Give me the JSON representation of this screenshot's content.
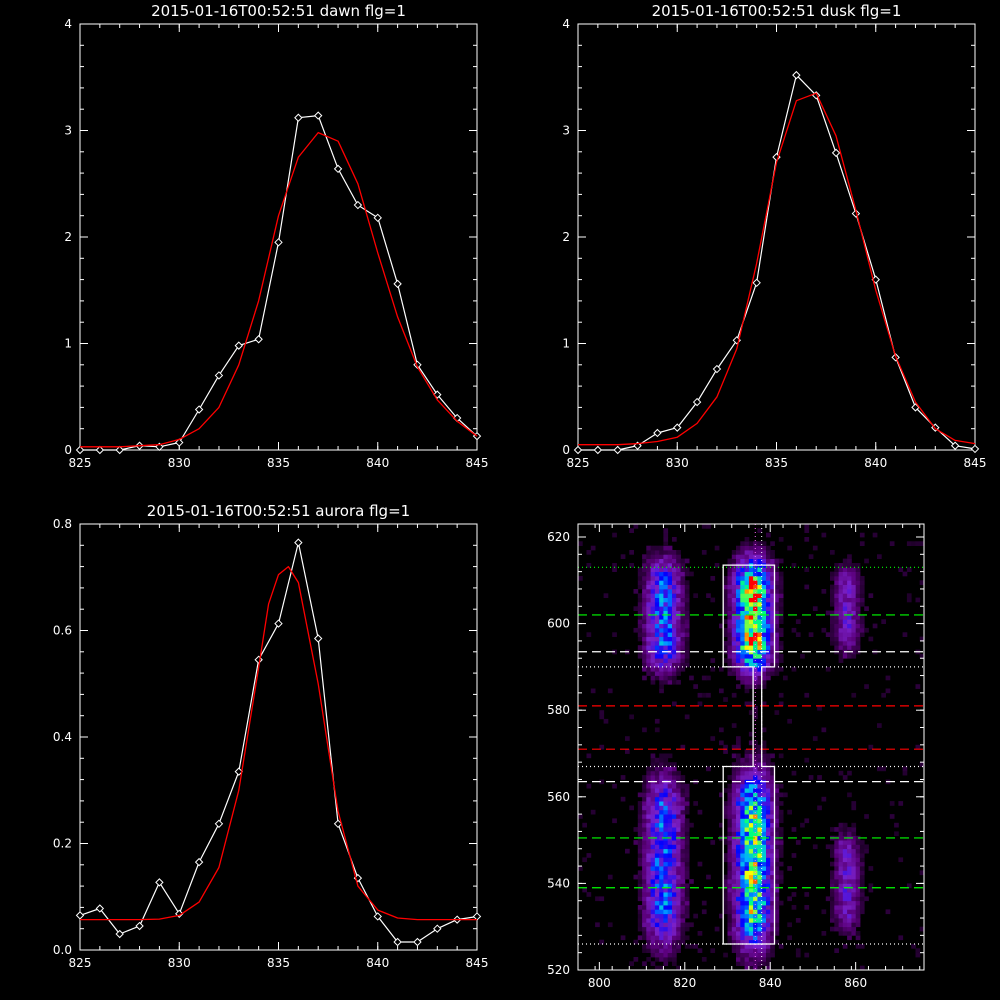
{
  "chart_data": [
    {
      "type": "line",
      "title": "2015-01-16T00:52:51 dawn flg=1",
      "xlim": [
        825,
        845
      ],
      "ylim": [
        0,
        4
      ],
      "xticks": [
        "825",
        "830",
        "835",
        "840",
        "845"
      ],
      "yticks": [
        "0",
        "1",
        "2",
        "3",
        "4"
      ],
      "series": [
        {
          "color": "#ffffff",
          "marker": "diamond",
          "x": [
            825,
            826,
            827,
            828,
            829,
            830,
            831,
            832,
            833,
            834,
            835,
            836,
            837,
            838,
            839,
            840,
            841,
            842,
            843,
            844,
            845
          ],
          "y": [
            -0.02,
            -0.02,
            -0.02,
            0.04,
            0.03,
            0.07,
            0.38,
            0.7,
            0.98,
            1.04,
            1.95,
            3.12,
            3.14,
            2.64,
            2.3,
            2.18,
            1.56,
            0.8,
            0.52,
            0.3,
            0.13
          ]
        },
        {
          "color": "#ff0000",
          "style": "fit",
          "x": [
            825,
            826,
            827,
            828,
            829,
            830,
            831,
            832,
            833,
            834,
            835,
            836,
            837,
            838,
            839,
            840,
            841,
            842,
            843,
            844,
            845
          ],
          "y": [
            0.03,
            0.03,
            0.03,
            0.04,
            0.05,
            0.1,
            0.2,
            0.4,
            0.8,
            1.4,
            2.2,
            2.75,
            2.98,
            2.9,
            2.5,
            1.85,
            1.25,
            0.78,
            0.47,
            0.27,
            0.13
          ]
        }
      ]
    },
    {
      "type": "line",
      "title": "2015-01-16T00:52:51 dusk flg=1",
      "xlim": [
        825,
        845
      ],
      "ylim": [
        0,
        4
      ],
      "xticks": [
        "825",
        "830",
        "835",
        "840",
        "845"
      ],
      "yticks": [
        "0",
        "1",
        "2",
        "3",
        "4"
      ],
      "series": [
        {
          "color": "#ffffff",
          "marker": "diamond",
          "x": [
            825,
            826,
            827,
            828,
            829,
            830,
            831,
            832,
            833,
            834,
            835,
            836,
            837,
            838,
            839,
            840,
            841,
            842,
            843,
            844,
            845
          ],
          "y": [
            -0.03,
            -0.02,
            -0.02,
            0.04,
            0.16,
            0.21,
            0.45,
            0.76,
            1.03,
            1.57,
            2.75,
            3.52,
            3.33,
            2.79,
            2.22,
            1.6,
            0.87,
            0.4,
            0.21,
            0.04,
            0.01
          ]
        },
        {
          "color": "#ff0000",
          "style": "fit",
          "x": [
            825,
            826,
            827,
            828,
            829,
            830,
            831,
            832,
            833,
            834,
            835,
            836,
            837,
            838,
            839,
            840,
            841,
            842,
            843,
            844,
            845
          ],
          "y": [
            0.05,
            0.05,
            0.05,
            0.06,
            0.08,
            0.12,
            0.25,
            0.5,
            0.95,
            1.75,
            2.7,
            3.28,
            3.35,
            2.95,
            2.25,
            1.5,
            0.88,
            0.45,
            0.2,
            0.09,
            0.06
          ]
        }
      ]
    },
    {
      "type": "line",
      "title": "2015-01-16T00:52:51 aurora flg=1",
      "xlim": [
        825,
        845
      ],
      "ylim": [
        0,
        0.8
      ],
      "xticks": [
        "825",
        "830",
        "835",
        "840",
        "845"
      ],
      "yticks": [
        "0.0",
        "0.2",
        "0.4",
        "0.6",
        "0.8"
      ],
      "series": [
        {
          "color": "#ffffff",
          "marker": "diamond",
          "x": [
            825,
            826,
            827,
            828,
            829,
            830,
            831,
            832,
            833,
            834,
            835,
            836,
            837,
            838,
            839,
            840,
            841,
            842,
            843,
            844,
            845
          ],
          "y": [
            0.065,
            0.078,
            0.03,
            0.045,
            0.127,
            0.068,
            0.165,
            0.237,
            0.335,
            0.545,
            0.613,
            0.765,
            0.585,
            0.237,
            0.135,
            0.063,
            0.015,
            0.015,
            0.04,
            0.057,
            0.063
          ]
        },
        {
          "color": "#ff0000",
          "style": "fit",
          "x": [
            825,
            826,
            827,
            828,
            829,
            830,
            831,
            832,
            833,
            834,
            834.5,
            835,
            835.5,
            836,
            837,
            838,
            839,
            840,
            841,
            842,
            843,
            845
          ],
          "y": [
            0.057,
            0.057,
            0.057,
            0.057,
            0.058,
            0.065,
            0.09,
            0.155,
            0.3,
            0.53,
            0.65,
            0.705,
            0.72,
            0.69,
            0.5,
            0.26,
            0.12,
            0.075,
            0.06,
            0.057,
            0.057,
            0.057
          ]
        }
      ]
    },
    {
      "type": "heatmap",
      "title": "",
      "xlim": [
        795,
        876
      ],
      "ylim": [
        520,
        623
      ],
      "xticks": [
        "800",
        "820",
        "840",
        "860"
      ],
      "yticks": [
        "520",
        "540",
        "560",
        "580",
        "600",
        "620"
      ],
      "colormap": [
        "#000000",
        "#5a007a",
        "#7a20c8",
        "#0000ff",
        "#00b0ff",
        "#00ff80",
        "#ffff00",
        "#ff0000"
      ],
      "blobs": [
        {
          "x_center": 815,
          "x_width": 4,
          "y_min": 591,
          "y_max": 613,
          "peak": 0.55
        },
        {
          "x_center": 815,
          "x_width": 4,
          "y_min": 528,
          "y_max": 562,
          "peak": 0.55
        },
        {
          "x_center": 836,
          "x_width": 4,
          "y_min": 591,
          "y_max": 613,
          "peak": 1.0
        },
        {
          "x_center": 836,
          "x_width": 4,
          "y_min": 528,
          "y_max": 563,
          "peak": 0.85
        },
        {
          "x_center": 858,
          "x_width": 3,
          "y_min": 595,
          "y_max": 612,
          "peak": 0.3
        },
        {
          "x_center": 858,
          "x_width": 3,
          "y_min": 531,
          "y_max": 550,
          "peak": 0.3
        }
      ],
      "hlines": [
        {
          "y": 613,
          "color": "#00ff00",
          "style": "dotted"
        },
        {
          "y": 602,
          "color": "#00ff00",
          "style": "dashed"
        },
        {
          "y": 593.5,
          "color": "#ffffff",
          "style": "dashed"
        },
        {
          "y": 590,
          "color": "#ffffff",
          "style": "dotted"
        },
        {
          "y": 581,
          "color": "#ff0000",
          "style": "dashed"
        },
        {
          "y": 571,
          "color": "#ff0000",
          "style": "dashed"
        },
        {
          "y": 567,
          "color": "#ffffff",
          "style": "dotted"
        },
        {
          "y": 563.5,
          "color": "#ffffff",
          "style": "dashed"
        },
        {
          "y": 550.5,
          "color": "#00ff00",
          "style": "dashed"
        },
        {
          "y": 539,
          "color": "#00ff00",
          "style": "dashed"
        },
        {
          "y": 526,
          "color": "#ffffff",
          "style": "dotted"
        }
      ],
      "vlines": [
        {
          "x": 836.5,
          "color": "#ff66ff",
          "style": "dotted"
        },
        {
          "x": 838,
          "color": "#ffffff",
          "style": "dotted"
        }
      ],
      "outline_polygon": [
        [
          829,
          613.5
        ],
        [
          841,
          613.5
        ],
        [
          841,
          590
        ],
        [
          838,
          590
        ],
        [
          838,
          567
        ],
        [
          841,
          567
        ],
        [
          841,
          526
        ],
        [
          829,
          526
        ],
        [
          829,
          567
        ],
        [
          836,
          567
        ],
        [
          836,
          590
        ],
        [
          829,
          590
        ]
      ]
    }
  ]
}
